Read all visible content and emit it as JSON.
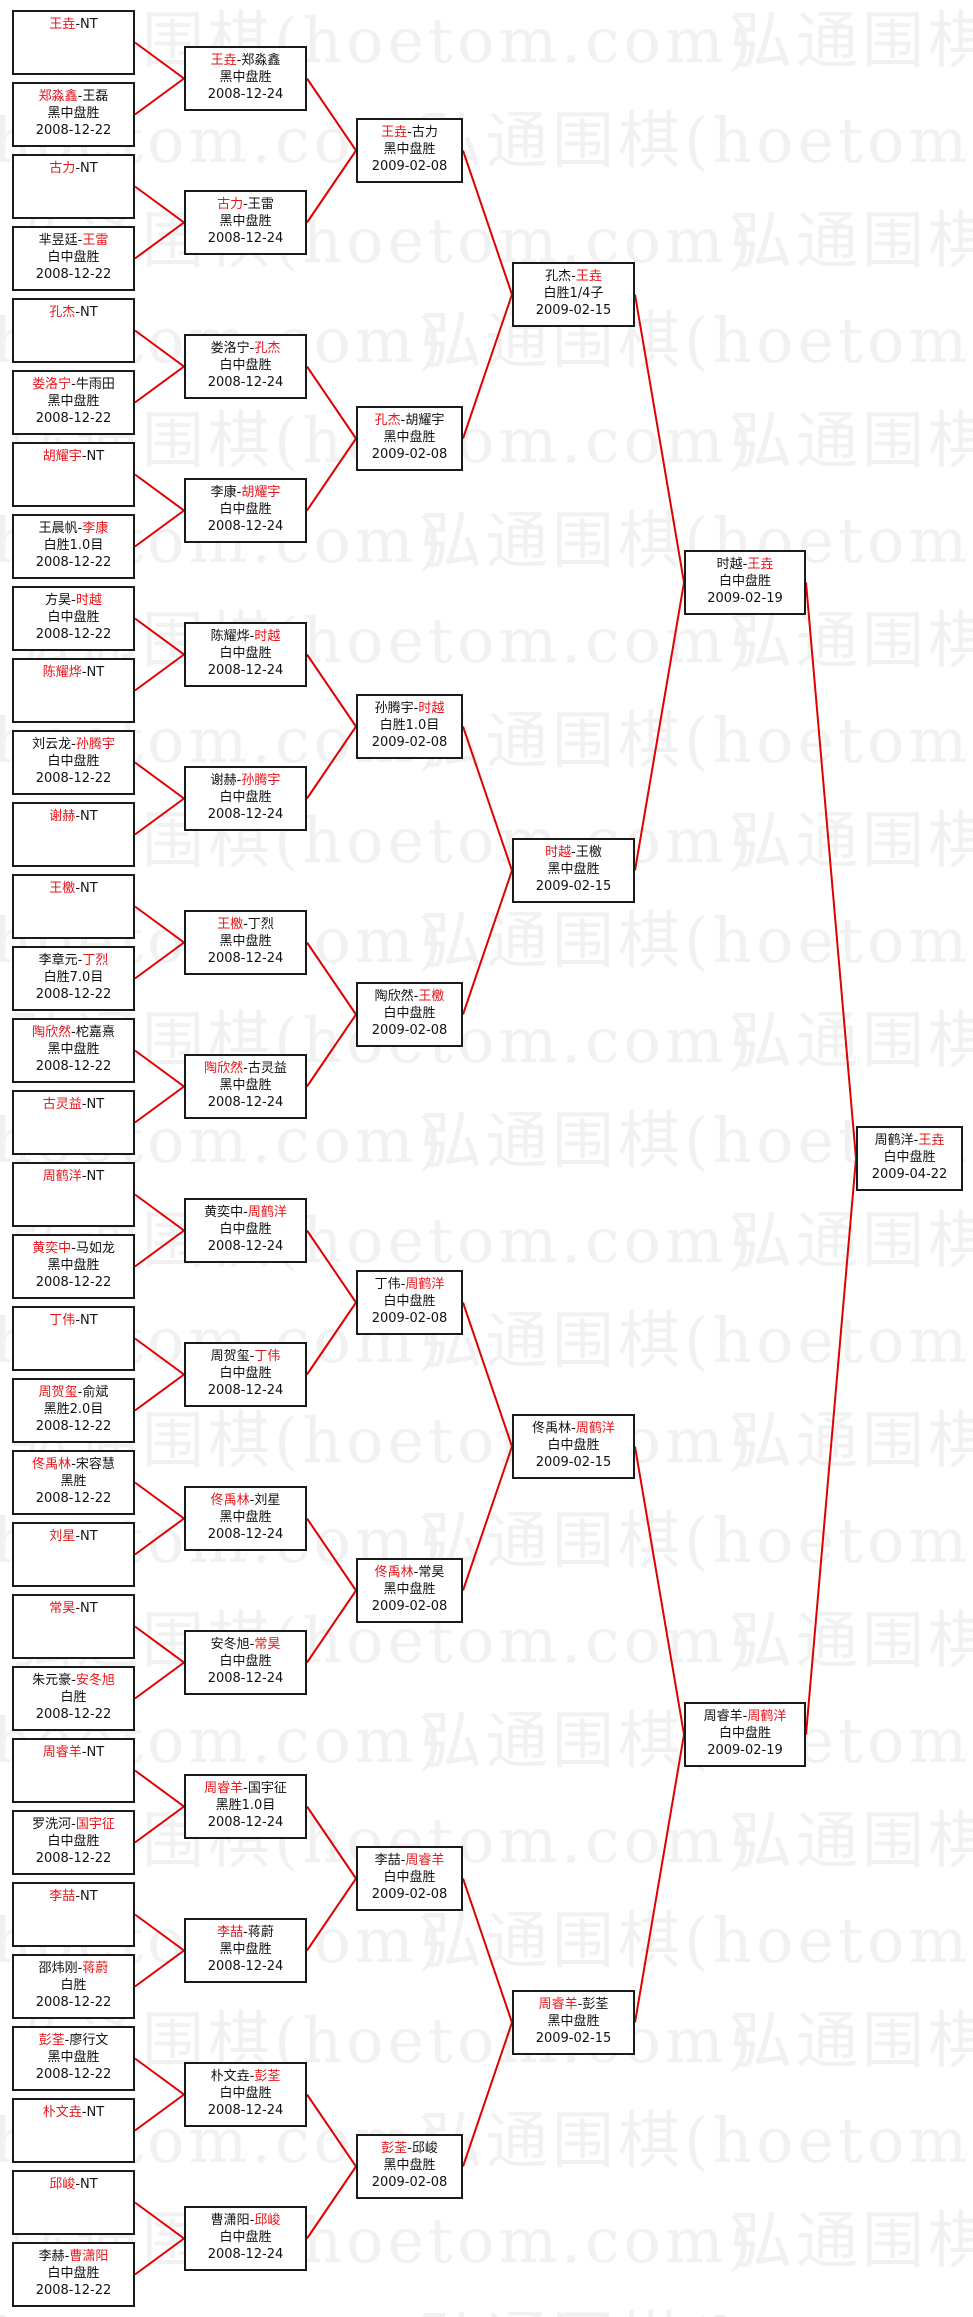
{
  "watermark": "弘通围棋(hoetom.com)",
  "colors": {
    "winner": "#e8141a",
    "connector": "#e00000",
    "border": "#1a1a1a"
  },
  "rounds": [
    [
      {
        "a": "王垚",
        "b": "NT",
        "w": "a"
      },
      {
        "a": "郑淼鑫",
        "b": "王磊",
        "w": "a",
        "result": "黑中盘胜",
        "date": "2008-12-22"
      },
      {
        "a": "古力",
        "b": "NT",
        "w": "a"
      },
      {
        "a": "芈昱廷",
        "b": "王雷",
        "w": "b",
        "result": "白中盘胜",
        "date": "2008-12-22"
      },
      {
        "a": "孔杰",
        "b": "NT",
        "w": "a"
      },
      {
        "a": "娄洛宁",
        "b": "牛雨田",
        "w": "a",
        "result": "黑中盘胜",
        "date": "2008-12-22"
      },
      {
        "a": "胡耀宇",
        "b": "NT",
        "w": "a"
      },
      {
        "a": "王晨帆",
        "b": "李康",
        "w": "b",
        "result": "白胜1.0目",
        "date": "2008-12-22"
      },
      {
        "a": "方昊",
        "b": "时越",
        "w": "b",
        "result": "白中盘胜",
        "date": "2008-12-22"
      },
      {
        "a": "陈耀烨",
        "b": "NT",
        "w": "a"
      },
      {
        "a": "刘云龙",
        "b": "孙腾宇",
        "w": "b",
        "result": "白中盘胜",
        "date": "2008-12-22"
      },
      {
        "a": "谢赫",
        "b": "NT",
        "w": "a"
      },
      {
        "a": "王檄",
        "b": "NT",
        "w": "a"
      },
      {
        "a": "李章元",
        "b": "丁烈",
        "w": "b",
        "result": "白胜7.0目",
        "date": "2008-12-22"
      },
      {
        "a": "陶欣然",
        "b": "柁嘉熹",
        "w": "a",
        "result": "黑中盘胜",
        "date": "2008-12-22"
      },
      {
        "a": "古灵益",
        "b": "NT",
        "w": "a"
      },
      {
        "a": "周鹤洋",
        "b": "NT",
        "w": "a"
      },
      {
        "a": "黄奕中",
        "b": "马如龙",
        "w": "a",
        "result": "黑中盘胜",
        "date": "2008-12-22"
      },
      {
        "a": "丁伟",
        "b": "NT",
        "w": "a"
      },
      {
        "a": "周贺玺",
        "b": "俞斌",
        "w": "a",
        "result": "黑胜2.0目",
        "date": "2008-12-22"
      },
      {
        "a": "佟禹林",
        "b": "宋容慧",
        "w": "a",
        "result": "黑胜",
        "date": "2008-12-22"
      },
      {
        "a": "刘星",
        "b": "NT",
        "w": "a"
      },
      {
        "a": "常昊",
        "b": "NT",
        "w": "a"
      },
      {
        "a": "朱元豪",
        "b": "安冬旭",
        "w": "b",
        "result": "白胜",
        "date": "2008-12-22"
      },
      {
        "a": "周睿羊",
        "b": "NT",
        "w": "a"
      },
      {
        "a": "罗洗河",
        "b": "国宇征",
        "w": "b",
        "result": "白中盘胜",
        "date": "2008-12-22"
      },
      {
        "a": "李喆",
        "b": "NT",
        "w": "a"
      },
      {
        "a": "邵炜刚",
        "b": "蒋蔚",
        "w": "b",
        "result": "白胜",
        "date": "2008-12-22"
      },
      {
        "a": "彭荃",
        "b": "廖行文",
        "w": "a",
        "result": "黑中盘胜",
        "date": "2008-12-22"
      },
      {
        "a": "朴文垚",
        "b": "NT",
        "w": "a"
      },
      {
        "a": "邱峻",
        "b": "NT",
        "w": "a"
      },
      {
        "a": "李赫",
        "b": "曹潇阳",
        "w": "b",
        "result": "白中盘胜",
        "date": "2008-12-22"
      }
    ],
    [
      {
        "a": "王垚",
        "b": "郑淼鑫",
        "w": "a",
        "result": "黑中盘胜",
        "date": "2008-12-24"
      },
      {
        "a": "古力",
        "b": "王雷",
        "w": "a",
        "result": "黑中盘胜",
        "date": "2008-12-24"
      },
      {
        "a": "娄洛宁",
        "b": "孔杰",
        "w": "b",
        "result": "白中盘胜",
        "date": "2008-12-24"
      },
      {
        "a": "李康",
        "b": "胡耀宇",
        "w": "b",
        "result": "白中盘胜",
        "date": "2008-12-24"
      },
      {
        "a": "陈耀烨",
        "b": "时越",
        "w": "b",
        "result": "白中盘胜",
        "date": "2008-12-24"
      },
      {
        "a": "谢赫",
        "b": "孙腾宇",
        "w": "b",
        "result": "白中盘胜",
        "date": "2008-12-24"
      },
      {
        "a": "王檄",
        "b": "丁烈",
        "w": "a",
        "result": "黑中盘胜",
        "date": "2008-12-24"
      },
      {
        "a": "陶欣然",
        "b": "古灵益",
        "w": "a",
        "result": "黑中盘胜",
        "date": "2008-12-24"
      },
      {
        "a": "黄奕中",
        "b": "周鹤洋",
        "w": "b",
        "result": "白中盘胜",
        "date": "2008-12-24"
      },
      {
        "a": "周贺玺",
        "b": "丁伟",
        "w": "b",
        "result": "白中盘胜",
        "date": "2008-12-24"
      },
      {
        "a": "佟禹林",
        "b": "刘星",
        "w": "a",
        "result": "黑中盘胜",
        "date": "2008-12-24"
      },
      {
        "a": "安冬旭",
        "b": "常昊",
        "w": "b",
        "result": "白中盘胜",
        "date": "2008-12-24"
      },
      {
        "a": "周睿羊",
        "b": "国宇征",
        "w": "a",
        "result": "黑胜1.0目",
        "date": "2008-12-24"
      },
      {
        "a": "李喆",
        "b": "蒋蔚",
        "w": "a",
        "result": "黑中盘胜",
        "date": "2008-12-24"
      },
      {
        "a": "朴文垚",
        "b": "彭荃",
        "w": "b",
        "result": "白中盘胜",
        "date": "2008-12-24"
      },
      {
        "a": "曹潇阳",
        "b": "邱峻",
        "w": "b",
        "result": "白中盘胜",
        "date": "2008-12-24"
      }
    ],
    [
      {
        "a": "王垚",
        "b": "古力",
        "w": "a",
        "result": "黑中盘胜",
        "date": "2009-02-08"
      },
      {
        "a": "孔杰",
        "b": "胡耀宇",
        "w": "a",
        "result": "黑中盘胜",
        "date": "2009-02-08"
      },
      {
        "a": "孙腾宇",
        "b": "时越",
        "w": "b",
        "result": "白胜1.0目",
        "date": "2009-02-08"
      },
      {
        "a": "陶欣然",
        "b": "王檄",
        "w": "b",
        "result": "白中盘胜",
        "date": "2009-02-08"
      },
      {
        "a": "丁伟",
        "b": "周鹤洋",
        "w": "b",
        "result": "白中盘胜",
        "date": "2009-02-08"
      },
      {
        "a": "佟禹林",
        "b": "常昊",
        "w": "a",
        "result": "黑中盘胜",
        "date": "2009-02-08"
      },
      {
        "a": "李喆",
        "b": "周睿羊",
        "w": "b",
        "result": "白中盘胜",
        "date": "2009-02-08"
      },
      {
        "a": "彭荃",
        "b": "邱峻",
        "w": "a",
        "result": "黑中盘胜",
        "date": "2009-02-08"
      }
    ],
    [
      {
        "a": "孔杰",
        "b": "王垚",
        "w": "b",
        "result": "白胜1/4子",
        "date": "2009-02-15"
      },
      {
        "a": "时越",
        "b": "王檄",
        "w": "a",
        "result": "黑中盘胜",
        "date": "2009-02-15"
      },
      {
        "a": "佟禹林",
        "b": "周鹤洋",
        "w": "b",
        "result": "白中盘胜",
        "date": "2009-02-15"
      },
      {
        "a": "周睿羊",
        "b": "彭荃",
        "w": "a",
        "result": "黑中盘胜",
        "date": "2009-02-15"
      }
    ],
    [
      {
        "a": "时越",
        "b": "王垚",
        "w": "b",
        "result": "白中盘胜",
        "date": "2009-02-19"
      },
      {
        "a": "周睿羊",
        "b": "周鹤洋",
        "w": "b",
        "result": "白中盘胜",
        "date": "2009-02-19"
      }
    ],
    [
      {
        "a": "周鹤洋",
        "b": "王垚",
        "w": "b",
        "result": "白中盘胜",
        "date": "2009-04-22"
      }
    ]
  ]
}
